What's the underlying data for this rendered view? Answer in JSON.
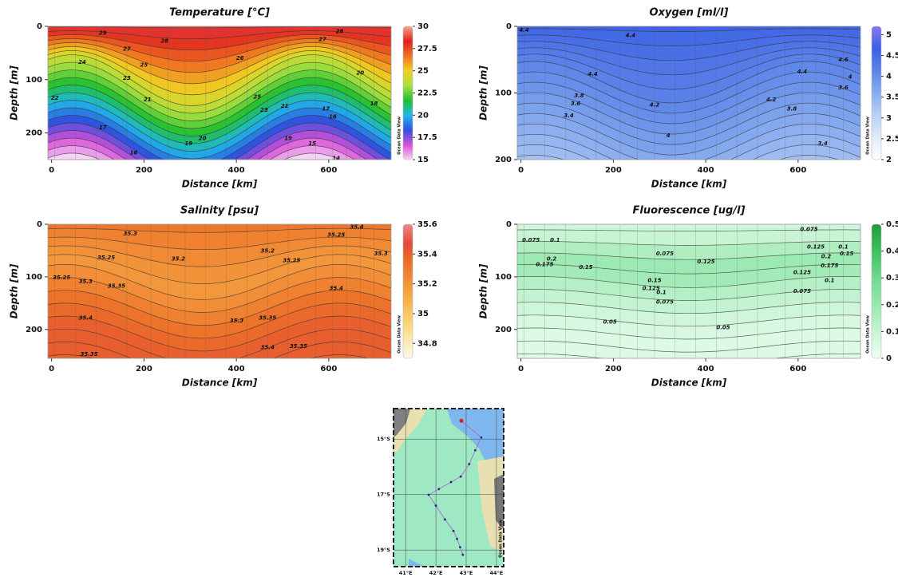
{
  "chart_data": [
    {
      "type": "section",
      "title": "Temperature [°C]",
      "xlabel": "Distance [km]",
      "ylabel": "Depth [m]",
      "xlim": [
        -8,
        735
      ],
      "xticks": [
        0,
        200,
        400,
        600
      ],
      "ylim": [
        0,
        250
      ],
      "yticks": [
        0,
        100,
        200
      ],
      "clim": [
        15,
        30
      ],
      "cticks": [
        15,
        17.5,
        20,
        22.5,
        25,
        27.5,
        30
      ],
      "colormap": [
        "#f4d4f2",
        "#d850d8",
        "#3050e0",
        "#20b8e8",
        "#20c030",
        "#a8e040",
        "#f0d020",
        "#f07020",
        "#e02020",
        "#f4a888"
      ],
      "watermark": "Ocean Data View",
      "contour_labels": [
        29,
        28,
        27,
        24,
        25,
        26,
        23,
        22,
        21,
        25,
        20,
        18,
        17,
        16,
        19,
        20,
        23,
        21,
        19,
        17,
        16,
        15,
        14,
        28,
        27
      ]
    },
    {
      "type": "section",
      "title": "Oxygen [ml/l]",
      "xlabel": "Distance [km]",
      "ylabel": "Depth [m]",
      "xlim": [
        -8,
        735
      ],
      "xticks": [
        0,
        200,
        400,
        600
      ],
      "ylim": [
        0,
        200
      ],
      "yticks": [
        0,
        100,
        200
      ],
      "clim": [
        2,
        5.2
      ],
      "cticks": [
        2,
        2.5,
        3,
        3.5,
        4,
        4.5,
        5
      ],
      "colormap": [
        "#ffffff",
        "#e0ecfa",
        "#b8d0f4",
        "#88acee",
        "#5c84e8",
        "#3c60e4",
        "#8878f0"
      ],
      "watermark": "Ocean Data View",
      "contour_labels": [
        4.4,
        4.4,
        4.6,
        4,
        4.4,
        4.4,
        3.8,
        3.6,
        3.4,
        4.2,
        4.2,
        3.6,
        3.8,
        4,
        3.4
      ]
    },
    {
      "type": "section",
      "title": "Salinity [psu]",
      "xlabel": "Distance [km]",
      "ylabel": "Depth [m]",
      "xlim": [
        -8,
        735
      ],
      "xticks": [
        0,
        200,
        400,
        600
      ],
      "ylim": [
        0,
        255
      ],
      "yticks": [
        0,
        100,
        200
      ],
      "clim": [
        34.7,
        35.6
      ],
      "cticks": [
        34.8,
        35,
        35.2,
        35.4,
        35.6
      ],
      "colormap": [
        "#fff8ea",
        "#fde8a8",
        "#fbd070",
        "#f7b048",
        "#f29038",
        "#ec7028",
        "#e44838",
        "#f08888"
      ],
      "watermark": "Ocean Data View",
      "contour_labels": [
        35.3,
        35.25,
        35.2,
        35.2,
        35.25,
        35.25,
        35.4,
        35.3,
        35.25,
        35.3,
        35.35,
        35.4,
        35.3,
        35.35,
        35.4,
        35.35,
        35.4,
        35.35
      ]
    },
    {
      "type": "section",
      "title": "Fluorescence [ug/l]",
      "xlabel": "Distance [km]",
      "ylabel": "Depth [m]",
      "xlim": [
        -8,
        735
      ],
      "xticks": [
        0,
        200,
        400,
        600
      ],
      "ylim": [
        0,
        255
      ],
      "yticks": [
        0,
        100,
        200
      ],
      "clim": [
        0,
        0.5
      ],
      "cticks": [
        0,
        0.1,
        0.2,
        0.3,
        0.4,
        0.5
      ],
      "colormap": [
        "#f0fff4",
        "#c8f4d4",
        "#98e8b0",
        "#70d890",
        "#40c060",
        "#209840"
      ],
      "watermark": "Ocean Data View",
      "contour_labels": [
        0.075,
        0.1,
        0.2,
        0.175,
        0.15,
        0.075,
        0.125,
        0.15,
        0.125,
        0.1,
        0.075,
        0.05,
        0.05,
        0.075,
        0.125,
        0.1,
        0.15,
        0.2,
        0.175,
        0.125,
        0.1,
        0.075
      ]
    },
    {
      "type": "map",
      "xlim": [
        40.6,
        44.24
      ],
      "ylim": [
        -19.6,
        -13.9
      ],
      "xticks": [
        {
          "value": 41,
          "label": "41°E"
        },
        {
          "value": 42,
          "label": "42°E"
        },
        {
          "value": 43,
          "label": "43°E"
        },
        {
          "value": 44,
          "label": "44°E"
        }
      ],
      "yticks": [
        {
          "value": -15,
          "label": "15°S"
        },
        {
          "value": -17,
          "label": "17°S"
        },
        {
          "value": -19,
          "label": "19°S"
        }
      ],
      "watermark": "Ocean Data View",
      "track": {
        "lon": [
          42.84,
          43.5,
          43.3,
          43.1,
          42.82,
          42.5,
          42.1,
          41.76,
          42.0,
          42.3,
          42.58,
          42.7,
          42.8,
          42.89
        ],
        "lat": [
          -14.34,
          -14.94,
          -15.4,
          -15.9,
          -16.35,
          -16.55,
          -16.8,
          -17.01,
          -17.4,
          -17.9,
          -18.31,
          -18.6,
          -18.9,
          -19.17
        ]
      }
    }
  ]
}
